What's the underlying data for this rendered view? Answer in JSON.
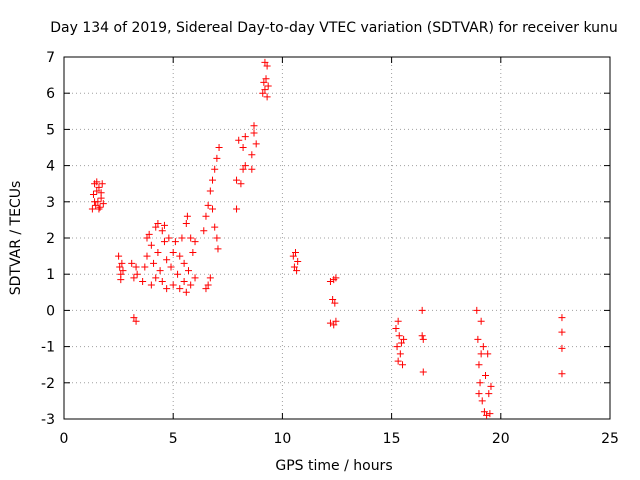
{
  "chart_data": {
    "type": "scatter",
    "title": "Day 134 of 2019, Sidereal Day-to-day VTEC variation (SDTVAR) for receiver kunu",
    "xlabel": "GPS time / hours",
    "ylabel": "SDTVAR / TECUs",
    "xlim": [
      0,
      25
    ],
    "ylim": [
      -3,
      7
    ],
    "x_ticks": [
      0,
      5,
      10,
      15,
      20,
      25
    ],
    "y_ticks": [
      -3,
      -2,
      -1,
      0,
      1,
      2,
      3,
      4,
      5,
      6,
      7
    ],
    "grid": true,
    "marker": "plus",
    "color": "#ff0000",
    "series": [
      {
        "name": "SDTVAR",
        "points": [
          [
            1.3,
            2.8
          ],
          [
            1.35,
            3.2
          ],
          [
            1.4,
            3.5
          ],
          [
            1.45,
            2.9
          ],
          [
            1.5,
            3.3
          ],
          [
            1.55,
            3.0
          ],
          [
            1.6,
            3.4
          ],
          [
            1.65,
            2.85
          ],
          [
            1.7,
            3.1
          ],
          [
            1.75,
            3.5
          ],
          [
            1.8,
            2.95
          ],
          [
            1.4,
            3.0
          ],
          [
            1.5,
            3.55
          ],
          [
            1.6,
            2.8
          ],
          [
            1.7,
            3.25
          ],
          [
            2.5,
            1.5
          ],
          [
            2.55,
            1.2
          ],
          [
            2.6,
            1.0
          ],
          [
            2.65,
            1.3
          ],
          [
            2.7,
            1.1
          ],
          [
            2.6,
            0.85
          ],
          [
            3.1,
            1.3
          ],
          [
            3.2,
            0.9
          ],
          [
            3.3,
            1.2
          ],
          [
            3.35,
            1.0
          ],
          [
            3.2,
            -0.2
          ],
          [
            3.3,
            -0.3
          ],
          [
            3.6,
            0.8
          ],
          [
            3.7,
            1.2
          ],
          [
            3.8,
            1.5
          ],
          [
            3.8,
            2.0
          ],
          [
            3.9,
            2.1
          ],
          [
            4.0,
            0.7
          ],
          [
            4.0,
            1.8
          ],
          [
            4.1,
            1.3
          ],
          [
            4.2,
            2.3
          ],
          [
            4.2,
            0.9
          ],
          [
            4.3,
            2.4
          ],
          [
            4.3,
            1.6
          ],
          [
            4.4,
            1.1
          ],
          [
            4.5,
            2.2
          ],
          [
            4.5,
            0.8
          ],
          [
            4.6,
            1.9
          ],
          [
            4.7,
            1.4
          ],
          [
            4.7,
            0.6
          ],
          [
            4.8,
            2.0
          ],
          [
            4.9,
            1.2
          ],
          [
            5.0,
            1.6
          ],
          [
            5.0,
            0.7
          ],
          [
            5.1,
            1.9
          ],
          [
            5.2,
            1.0
          ],
          [
            5.3,
            1.5
          ],
          [
            5.3,
            0.6
          ],
          [
            5.4,
            2.0
          ],
          [
            5.5,
            0.8
          ],
          [
            5.5,
            1.3
          ],
          [
            5.6,
            2.4
          ],
          [
            5.6,
            0.5
          ],
          [
            5.7,
            1.1
          ],
          [
            5.8,
            0.7
          ],
          [
            5.8,
            2.0
          ],
          [
            5.9,
            1.6
          ],
          [
            6.0,
            0.9
          ],
          [
            6.0,
            1.9
          ],
          [
            4.6,
            2.35
          ],
          [
            5.65,
            2.6
          ],
          [
            6.5,
            0.6
          ],
          [
            6.6,
            0.7
          ],
          [
            6.7,
            0.9
          ],
          [
            6.4,
            2.2
          ],
          [
            6.5,
            2.6
          ],
          [
            6.6,
            2.9
          ],
          [
            6.7,
            3.3
          ],
          [
            6.8,
            3.6
          ],
          [
            6.9,
            3.9
          ],
          [
            7.0,
            4.2
          ],
          [
            7.1,
            4.5
          ],
          [
            6.8,
            2.8
          ],
          [
            6.9,
            2.3
          ],
          [
            7.0,
            2.0
          ],
          [
            7.05,
            1.7
          ],
          [
            7.9,
            2.8
          ],
          [
            7.9,
            3.6
          ],
          [
            8.0,
            4.7
          ],
          [
            8.1,
            3.5
          ],
          [
            8.2,
            3.9
          ],
          [
            8.2,
            4.5
          ],
          [
            8.3,
            4.0
          ],
          [
            8.3,
            4.8
          ],
          [
            8.6,
            3.9
          ],
          [
            8.6,
            4.3
          ],
          [
            8.7,
            4.9
          ],
          [
            8.7,
            5.1
          ],
          [
            8.8,
            4.6
          ],
          [
            9.1,
            6.0
          ],
          [
            9.15,
            6.3
          ],
          [
            9.2,
            6.1
          ],
          [
            9.25,
            6.4
          ],
          [
            9.3,
            5.9
          ],
          [
            9.35,
            6.2
          ],
          [
            9.2,
            6.85
          ],
          [
            9.3,
            6.75
          ],
          [
            10.5,
            1.5
          ],
          [
            10.55,
            1.2
          ],
          [
            10.6,
            1.6
          ],
          [
            10.65,
            1.1
          ],
          [
            10.7,
            1.35
          ],
          [
            12.2,
            0.8
          ],
          [
            12.3,
            0.3
          ],
          [
            12.35,
            0.85
          ],
          [
            12.4,
            0.2
          ],
          [
            12.45,
            0.9
          ],
          [
            12.2,
            -0.35
          ],
          [
            12.35,
            -0.4
          ],
          [
            12.45,
            -0.3
          ],
          [
            15.2,
            -0.5
          ],
          [
            15.25,
            -1.0
          ],
          [
            15.3,
            -1.4
          ],
          [
            15.35,
            -0.7
          ],
          [
            15.4,
            -1.2
          ],
          [
            15.45,
            -0.9
          ],
          [
            15.5,
            -1.5
          ],
          [
            15.55,
            -0.8
          ],
          [
            15.3,
            -0.3
          ],
          [
            16.4,
            0.0
          ],
          [
            16.4,
            -0.7
          ],
          [
            16.45,
            -1.7
          ],
          [
            16.45,
            -0.8
          ],
          [
            18.9,
            0.0
          ],
          [
            18.95,
            -0.8
          ],
          [
            19.0,
            -1.5
          ],
          [
            19.05,
            -2.0
          ],
          [
            19.1,
            -0.3
          ],
          [
            19.15,
            -2.5
          ],
          [
            19.2,
            -1.0
          ],
          [
            19.25,
            -2.8
          ],
          [
            19.3,
            -1.8
          ],
          [
            19.35,
            -2.9
          ],
          [
            19.4,
            -1.2
          ],
          [
            19.45,
            -2.3
          ],
          [
            19.5,
            -2.85
          ],
          [
            19.55,
            -2.1
          ],
          [
            19.0,
            -2.3
          ],
          [
            19.1,
            -1.2
          ],
          [
            22.8,
            -0.2
          ],
          [
            22.8,
            -0.6
          ],
          [
            22.8,
            -1.05
          ],
          [
            22.8,
            -1.75
          ]
        ]
      }
    ]
  }
}
